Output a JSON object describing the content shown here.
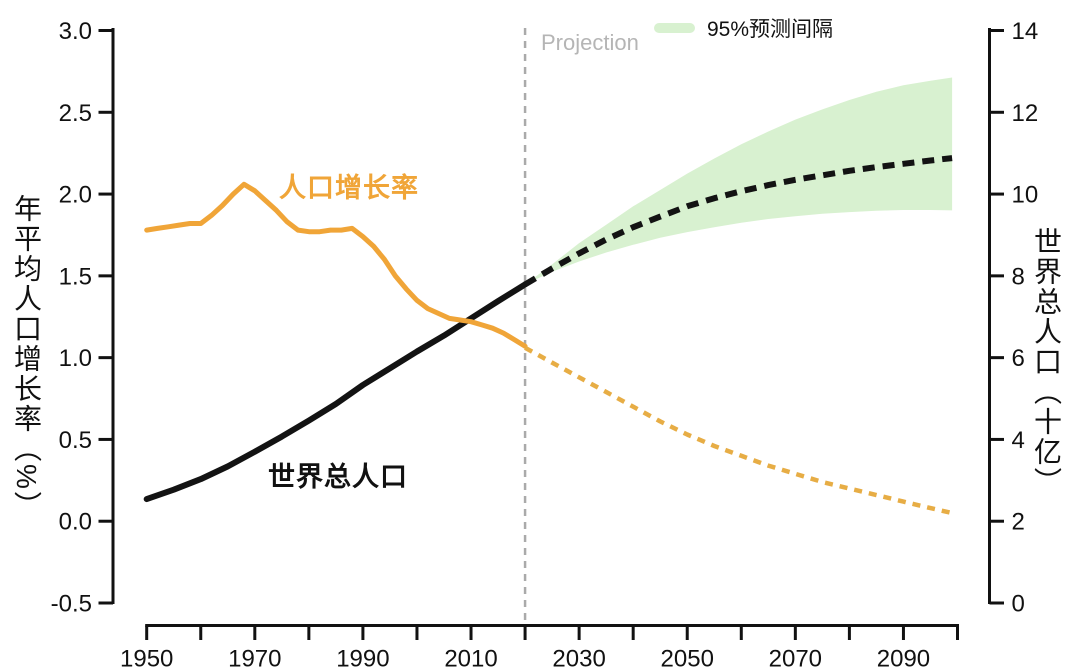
{
  "colors": {
    "population_line": "#131313",
    "growth_line": "#F0A538",
    "growth_line_projection": "#E7AD45",
    "prediction_band": "#D8F1D0",
    "divider": "#aaaaaa",
    "projection_text": "#b5b5b5",
    "axis": "#111111"
  },
  "legend": {
    "label": "95%预测间隔"
  },
  "labels": {
    "projection": "Projection",
    "growth_series": "人口增长率",
    "population_series": "世界总人口"
  },
  "chart_data": {
    "type": "line",
    "title": "",
    "grid": false,
    "projection_start_year": 2020,
    "x_axis": {
      "range": [
        1950,
        2100
      ],
      "tick_step": 10,
      "labeled_ticks": [
        "1950",
        "1970",
        "1990",
        "2010",
        "2030",
        "2050",
        "2070",
        "2090"
      ]
    },
    "left_axis": {
      "title": "年平均人口增长率（%）",
      "range": [
        -0.5,
        3.0
      ],
      "tick_labels": [
        "3.0",
        "2.5",
        "2.0",
        "1.5",
        "1.0",
        "0.5",
        "0.0",
        "-0.5"
      ]
    },
    "right_axis": {
      "title": "世界总人口（十亿）",
      "range": [
        0,
        14
      ],
      "tick_labels": [
        "14",
        "12",
        "10",
        "8",
        "6",
        "4",
        "2",
        "0"
      ]
    },
    "series": [
      {
        "name": "世界总人口（历史）",
        "axis": "right",
        "style": "solid",
        "color": "#131313",
        "points": [
          [
            1950,
            2.54
          ],
          [
            1955,
            2.77
          ],
          [
            1960,
            3.03
          ],
          [
            1965,
            3.34
          ],
          [
            1970,
            3.7
          ],
          [
            1975,
            4.07
          ],
          [
            1980,
            4.46
          ],
          [
            1985,
            4.87
          ],
          [
            1990,
            5.33
          ],
          [
            1995,
            5.74
          ],
          [
            2000,
            6.15
          ],
          [
            2005,
            6.54
          ],
          [
            2010,
            6.96
          ],
          [
            2015,
            7.38
          ],
          [
            2020,
            7.79
          ]
        ]
      },
      {
        "name": "世界总人口（预测中位数）",
        "axis": "right",
        "style": "dotted",
        "color": "#131313",
        "points": [
          [
            2020,
            7.79
          ],
          [
            2025,
            8.18
          ],
          [
            2030,
            8.55
          ],
          [
            2035,
            8.89
          ],
          [
            2040,
            9.19
          ],
          [
            2045,
            9.45
          ],
          [
            2050,
            9.7
          ],
          [
            2055,
            9.9
          ],
          [
            2060,
            10.07
          ],
          [
            2065,
            10.22
          ],
          [
            2070,
            10.35
          ],
          [
            2075,
            10.46
          ],
          [
            2080,
            10.57
          ],
          [
            2085,
            10.66
          ],
          [
            2090,
            10.74
          ],
          [
            2095,
            10.82
          ],
          [
            2099,
            10.88
          ]
        ]
      },
      {
        "name": "人口增长率（历史）",
        "axis": "left",
        "style": "solid",
        "color": "#F0A538",
        "points": [
          [
            1950,
            1.78
          ],
          [
            1952,
            1.79
          ],
          [
            1954,
            1.8
          ],
          [
            1956,
            1.81
          ],
          [
            1958,
            1.82
          ],
          [
            1960,
            1.82
          ],
          [
            1962,
            1.87
          ],
          [
            1964,
            1.93
          ],
          [
            1966,
            2.0
          ],
          [
            1968,
            2.06
          ],
          [
            1970,
            2.02
          ],
          [
            1972,
            1.96
          ],
          [
            1974,
            1.9
          ],
          [
            1976,
            1.83
          ],
          [
            1978,
            1.78
          ],
          [
            1980,
            1.77
          ],
          [
            1982,
            1.77
          ],
          [
            1984,
            1.78
          ],
          [
            1986,
            1.78
          ],
          [
            1988,
            1.79
          ],
          [
            1990,
            1.74
          ],
          [
            1992,
            1.68
          ],
          [
            1994,
            1.6
          ],
          [
            1996,
            1.5
          ],
          [
            1998,
            1.42
          ],
          [
            2000,
            1.35
          ],
          [
            2002,
            1.3
          ],
          [
            2004,
            1.27
          ],
          [
            2006,
            1.24
          ],
          [
            2008,
            1.23
          ],
          [
            2010,
            1.22
          ],
          [
            2012,
            1.2
          ],
          [
            2014,
            1.18
          ],
          [
            2016,
            1.15
          ],
          [
            2018,
            1.11
          ],
          [
            2020,
            1.07
          ]
        ]
      },
      {
        "name": "人口增长率（预测）",
        "axis": "left",
        "style": "dotted",
        "color": "#E7AD45",
        "points": [
          [
            2020,
            1.06
          ],
          [
            2025,
            0.97
          ],
          [
            2030,
            0.88
          ],
          [
            2035,
            0.79
          ],
          [
            2040,
            0.7
          ],
          [
            2045,
            0.61
          ],
          [
            2050,
            0.53
          ],
          [
            2055,
            0.46
          ],
          [
            2060,
            0.4
          ],
          [
            2065,
            0.34
          ],
          [
            2070,
            0.29
          ],
          [
            2075,
            0.24
          ],
          [
            2080,
            0.2
          ],
          [
            2085,
            0.16
          ],
          [
            2090,
            0.12
          ],
          [
            2095,
            0.08
          ],
          [
            2099,
            0.05
          ]
        ]
      }
    ],
    "band": {
      "name": "95%预测间隔",
      "axis": "right",
      "color": "#D8F1D0",
      "upper": [
        [
          2020,
          7.79
        ],
        [
          2025,
          8.28
        ],
        [
          2030,
          8.8
        ],
        [
          2035,
          9.25
        ],
        [
          2040,
          9.7
        ],
        [
          2045,
          10.1
        ],
        [
          2050,
          10.5
        ],
        [
          2055,
          10.87
        ],
        [
          2060,
          11.22
        ],
        [
          2065,
          11.53
        ],
        [
          2070,
          11.82
        ],
        [
          2075,
          12.07
        ],
        [
          2080,
          12.3
        ],
        [
          2085,
          12.5
        ],
        [
          2090,
          12.66
        ],
        [
          2095,
          12.77
        ],
        [
          2099,
          12.85
        ]
      ],
      "lower": [
        [
          2020,
          7.79
        ],
        [
          2025,
          8.1
        ],
        [
          2030,
          8.35
        ],
        [
          2035,
          8.57
        ],
        [
          2040,
          8.76
        ],
        [
          2045,
          8.93
        ],
        [
          2050,
          9.07
        ],
        [
          2055,
          9.19
        ],
        [
          2060,
          9.3
        ],
        [
          2065,
          9.39
        ],
        [
          2070,
          9.46
        ],
        [
          2075,
          9.52
        ],
        [
          2080,
          9.56
        ],
        [
          2085,
          9.59
        ],
        [
          2090,
          9.61
        ],
        [
          2095,
          9.61
        ],
        [
          2099,
          9.6
        ]
      ]
    }
  }
}
